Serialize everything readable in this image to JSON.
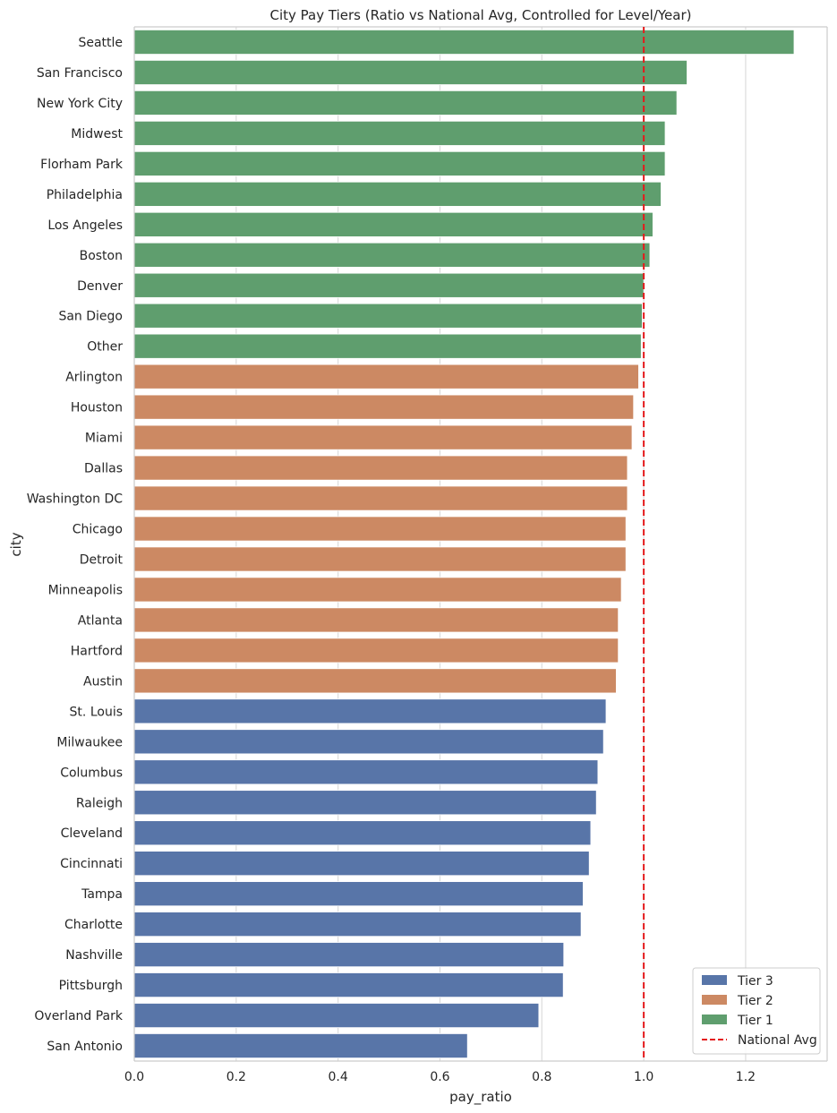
{
  "chart_data": {
    "type": "bar",
    "orientation": "horizontal",
    "title": "City Pay Tiers (Ratio vs National Avg, Controlled for Level/Year)",
    "xlabel": "pay_ratio",
    "ylabel": "city",
    "xlim": [
      0,
      1.36
    ],
    "xticks": [
      "0.0",
      "0.2",
      "0.4",
      "0.6",
      "0.8",
      "1.0",
      "1.2"
    ],
    "grid": true,
    "reference_line": {
      "label": "National Avg",
      "value": 1.0,
      "color": "#e41a1c",
      "style": "dashed"
    },
    "legend_position": "bottom-right",
    "series": [
      {
        "name": "Tier 3",
        "color": "#5875a8"
      },
      {
        "name": "Tier 2",
        "color": "#cc8963"
      },
      {
        "name": "Tier 1",
        "color": "#5f9e6e"
      }
    ],
    "categories": [
      "Seattle",
      "San Francisco",
      "New York City",
      "Midwest",
      "Florham Park",
      "Philadelphia",
      "Los Angeles",
      "Boston",
      "Denver",
      "San Diego",
      "Other",
      "Arlington",
      "Houston",
      "Miami",
      "Dallas",
      "Washington DC",
      "Chicago",
      "Detroit",
      "Minneapolis",
      "Atlanta",
      "Hartford",
      "Austin",
      "St. Louis",
      "Milwaukee",
      "Columbus",
      "Raleigh",
      "Cleveland",
      "Cincinnati",
      "Tampa",
      "Charlotte",
      "Nashville",
      "Pittsburgh",
      "Overland Park",
      "San Antonio"
    ],
    "values": [
      1.295,
      1.085,
      1.065,
      1.042,
      1.042,
      1.034,
      1.018,
      1.012,
      1.0,
      0.997,
      0.995,
      0.99,
      0.98,
      0.977,
      0.968,
      0.968,
      0.965,
      0.965,
      0.956,
      0.95,
      0.95,
      0.946,
      0.926,
      0.921,
      0.91,
      0.907,
      0.896,
      0.893,
      0.881,
      0.877,
      0.843,
      0.842,
      0.794,
      0.654
    ],
    "tiers": [
      "Tier 1",
      "Tier 1",
      "Tier 1",
      "Tier 1",
      "Tier 1",
      "Tier 1",
      "Tier 1",
      "Tier 1",
      "Tier 1",
      "Tier 1",
      "Tier 1",
      "Tier 2",
      "Tier 2",
      "Tier 2",
      "Tier 2",
      "Tier 2",
      "Tier 2",
      "Tier 2",
      "Tier 2",
      "Tier 2",
      "Tier 2",
      "Tier 2",
      "Tier 3",
      "Tier 3",
      "Tier 3",
      "Tier 3",
      "Tier 3",
      "Tier 3",
      "Tier 3",
      "Tier 3",
      "Tier 3",
      "Tier 3",
      "Tier 3",
      "Tier 3"
    ]
  }
}
